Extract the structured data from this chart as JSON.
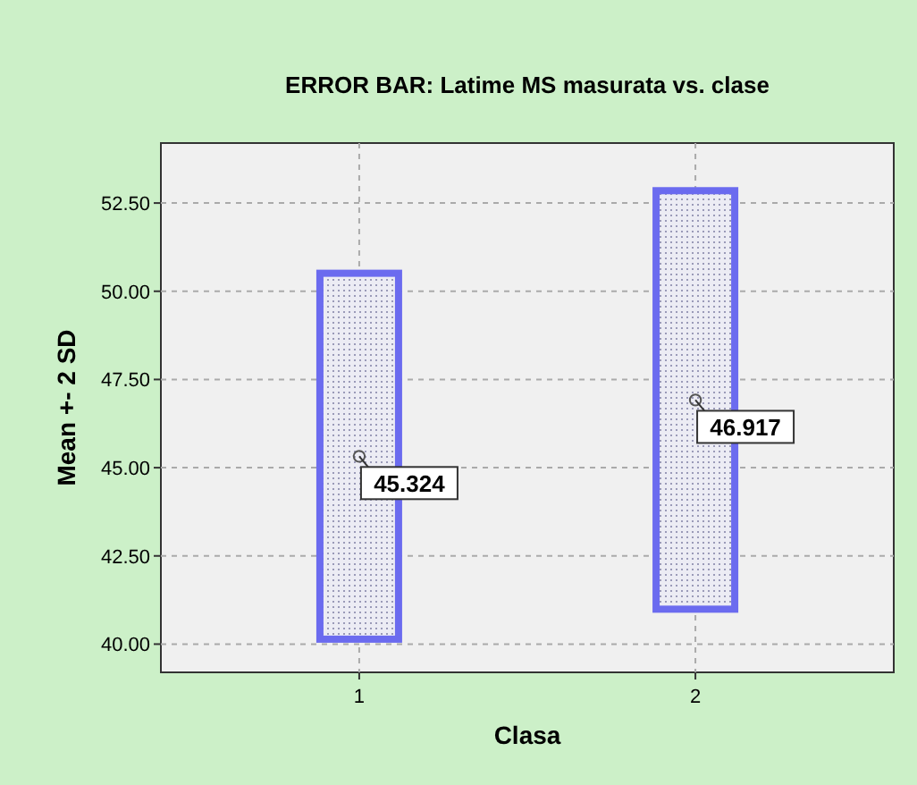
{
  "chart_data": {
    "type": "bar",
    "title": "ERROR BAR: Latime MS masurata vs. clase",
    "xlabel": "Clasa",
    "ylabel": "Mean +- 2 SD",
    "categories": [
      "1",
      "2"
    ],
    "series": [
      {
        "color": "#6b6bef",
        "base": [
          40.14,
          40.99
        ],
        "values": [
          10.37,
          11.86
        ]
      },
      {
        "type": "scatter",
        "color": "#555555",
        "x": [
          "1",
          "2"
        ],
        "values": [
          45.324,
          46.917
        ],
        "value_labels": [
          "45.324",
          "46.917"
        ]
      }
    ],
    "marker": "circle",
    "grid": true,
    "ylim": [
      39.2,
      54.2
    ],
    "yticks": [
      {
        "value": 40,
        "label": "40.00"
      },
      {
        "value": 42.5,
        "label": "42.50"
      },
      {
        "value": 45,
        "label": "45.00"
      },
      {
        "value": 47.5,
        "label": "47.50"
      },
      {
        "value": 50,
        "label": "50.00"
      },
      {
        "value": 52.5,
        "label": "52.50"
      }
    ]
  }
}
